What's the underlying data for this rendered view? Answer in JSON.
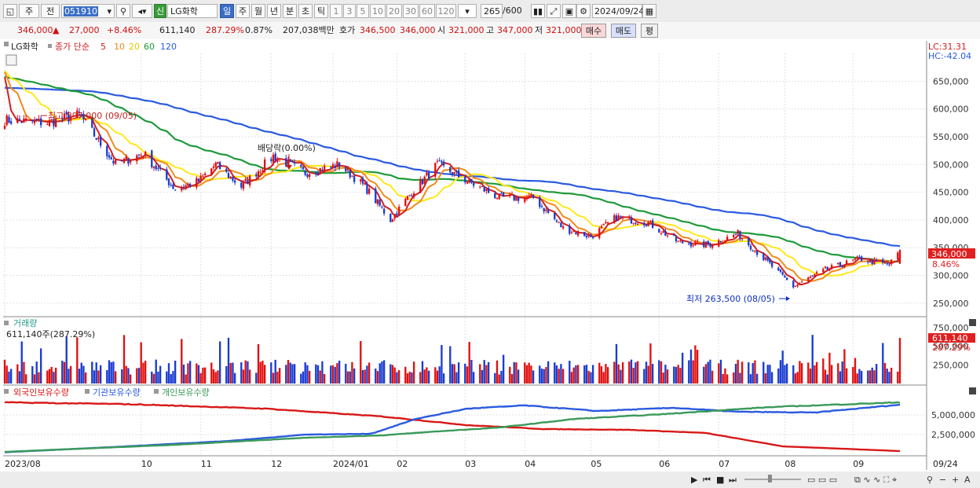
{
  "toolbar": {
    "type_label": "주",
    "prev_label": "전",
    "code": "051910",
    "credit_badge": "신",
    "stock_name": "LG화학",
    "periods": [
      "일",
      "주",
      "월",
      "년",
      "분",
      "초",
      "틱"
    ],
    "active_period": "일",
    "intervals": [
      "1",
      "3",
      "5",
      "10",
      "20",
      "30",
      "60",
      "120"
    ],
    "count": "265",
    "max": "/600",
    "date": "2024/09/24"
  },
  "quote": {
    "price": "346,000",
    "change_arrow": "▲",
    "change": "27,000",
    "change_pct": "+8.46%",
    "volume": "611,140",
    "volume_ratio": "287.29%",
    "turnover": "0.87%",
    "amount": "207,038백만",
    "bid_label": "호가",
    "ask": "346,500",
    "bid": "346,000",
    "open_label": "시",
    "open": "321,000",
    "high_label": "고",
    "high": "347,000",
    "low_label": "저",
    "low": "321,000",
    "buy_label": "매수",
    "sell_label": "매도",
    "eval_label": "평"
  },
  "colors": {
    "up": "#e01010",
    "down": "#1a3cd0",
    "ma5": "#d02020",
    "ma10": "#f08a1a",
    "ma20": "#ffe81a",
    "ma60": "#1f9a3a",
    "ma120": "#2a5ae0",
    "foreign": "#d81818",
    "institution": "#2a5ae0",
    "individual": "#3a9a5a"
  },
  "chart_data": [
    {
      "type": "candlestick",
      "title": "LG화학",
      "legend_prefix": "종가 단순",
      "legend_periods": [
        "5",
        "10",
        "20",
        "60",
        "120"
      ],
      "lc": "LC:31.31",
      "hc": "HC:-42.04",
      "ylim": [
        230000,
        700000
      ],
      "y_ticks": [
        "650,000",
        "600,000",
        "550,000",
        "500,000",
        "450,000",
        "400,000",
        "350,000",
        "300,000",
        "250,000"
      ],
      "y_tick_values": [
        650000,
        600000,
        550000,
        500000,
        450000,
        400000,
        350000,
        300000,
        250000
      ],
      "last_price_label": "346,000",
      "last_pct_label": "8.46%",
      "annotations": {
        "high": "최고 597,000 (09/05)",
        "low": "최저 263,500 (08/05)",
        "dividend": "배당락(0.00%)"
      },
      "x_labels": [
        "2023/08",
        "10",
        "11",
        "12",
        "2024/01",
        "02",
        "03",
        "04",
        "05",
        "06",
        "07",
        "08",
        "09",
        "09/24"
      ],
      "anchors": [
        {
          "date": "2023-08-01",
          "close": 580000
        },
        {
          "date": "2023-08-21",
          "close": 575000
        },
        {
          "date": "2023-09-05",
          "close": 590000
        },
        {
          "date": "2023-09-22",
          "close": 500000
        },
        {
          "date": "2023-10-05",
          "close": 520000
        },
        {
          "date": "2023-10-20",
          "close": 455000
        },
        {
          "date": "2023-10-31",
          "close": 470000
        },
        {
          "date": "2023-11-08",
          "close": 500000
        },
        {
          "date": "2023-11-20",
          "close": 460000
        },
        {
          "date": "2023-12-05",
          "close": 515000
        },
        {
          "date": "2023-12-20",
          "close": 485000
        },
        {
          "date": "2024-01-05",
          "close": 500000
        },
        {
          "date": "2024-01-17",
          "close": 460000
        },
        {
          "date": "2024-01-29",
          "close": 400000
        },
        {
          "date": "2024-02-08",
          "close": 450000
        },
        {
          "date": "2024-02-20",
          "close": 500000
        },
        {
          "date": "2024-03-05",
          "close": 470000
        },
        {
          "date": "2024-03-20",
          "close": 440000
        },
        {
          "date": "2024-04-05",
          "close": 440000
        },
        {
          "date": "2024-04-19",
          "close": 385000
        },
        {
          "date": "2024-05-02",
          "close": 370000
        },
        {
          "date": "2024-05-14",
          "close": 405000
        },
        {
          "date": "2024-05-29",
          "close": 395000
        },
        {
          "date": "2024-06-12",
          "close": 360000
        },
        {
          "date": "2024-06-26",
          "close": 355000
        },
        {
          "date": "2024-07-10",
          "close": 375000
        },
        {
          "date": "2024-07-25",
          "close": 320000
        },
        {
          "date": "2024-08-05",
          "close": 280000
        },
        {
          "date": "2024-08-20",
          "close": 310000
        },
        {
          "date": "2024-09-05",
          "close": 330000
        },
        {
          "date": "2024-09-19",
          "close": 319000
        },
        {
          "date": "2024-09-24",
          "close": 346000
        }
      ]
    },
    {
      "type": "bar",
      "title": "거래량",
      "subtitle": "611,140주(287.29%)",
      "ylim": [
        0,
        800000
      ],
      "y_ticks": [
        "750,000",
        "500,000",
        "250,000"
      ],
      "y_tick_values": [
        750000,
        500000,
        250000
      ],
      "last_label": "611,140",
      "last_pct_label": "287.29%",
      "last_value": 611140
    },
    {
      "type": "line",
      "legend": [
        "외국인보유수량",
        "기관보유수량",
        "개인보유수량"
      ],
      "ylim": [
        0,
        7000000
      ],
      "y_ticks": [
        "5,000,000",
        "2,500,000"
      ],
      "y_tick_values": [
        5000000,
        2500000
      ],
      "series": [
        {
          "name": "외국인보유수량",
          "anchors": [
            {
              "date": "2023-08-01",
              "v": 6600000
            },
            {
              "date": "2023-10-01",
              "v": 6350000
            },
            {
              "date": "2023-12-01",
              "v": 5800000
            },
            {
              "date": "2024-01-25",
              "v": 4800000
            },
            {
              "date": "2024-03-05",
              "v": 3700000
            },
            {
              "date": "2024-04-10",
              "v": 3200000
            },
            {
              "date": "2024-05-20",
              "v": 3100000
            },
            {
              "date": "2024-06-25",
              "v": 2700000
            },
            {
              "date": "2024-07-31",
              "v": 1000000
            },
            {
              "date": "2024-09-24",
              "v": 400000
            }
          ]
        },
        {
          "name": "기관보유수량",
          "anchors": [
            {
              "date": "2023-08-01",
              "v": 250000
            },
            {
              "date": "2023-09-20",
              "v": 900000
            },
            {
              "date": "2023-11-15",
              "v": 1700000
            },
            {
              "date": "2023-12-20",
              "v": 2500000
            },
            {
              "date": "2024-01-20",
              "v": 2600000
            },
            {
              "date": "2024-02-10",
              "v": 4500000
            },
            {
              "date": "2024-03-05",
              "v": 5800000
            },
            {
              "date": "2024-04-01",
              "v": 6200000
            },
            {
              "date": "2024-05-05",
              "v": 5500000
            },
            {
              "date": "2024-06-10",
              "v": 5900000
            },
            {
              "date": "2024-07-10",
              "v": 5400000
            },
            {
              "date": "2024-08-15",
              "v": 5300000
            },
            {
              "date": "2024-09-24",
              "v": 6300000
            }
          ]
        },
        {
          "name": "개인보유수량",
          "anchors": [
            {
              "date": "2023-08-01",
              "v": 300000
            },
            {
              "date": "2023-10-20",
              "v": 1200000
            },
            {
              "date": "2023-12-20",
              "v": 2100000
            },
            {
              "date": "2024-01-25",
              "v": 2400000
            },
            {
              "date": "2024-02-20",
              "v": 2900000
            },
            {
              "date": "2024-03-20",
              "v": 3400000
            },
            {
              "date": "2024-04-25",
              "v": 4500000
            },
            {
              "date": "2024-06-05",
              "v": 5100000
            },
            {
              "date": "2024-07-25",
              "v": 6000000
            },
            {
              "date": "2024-09-24",
              "v": 6600000
            }
          ]
        }
      ]
    }
  ]
}
